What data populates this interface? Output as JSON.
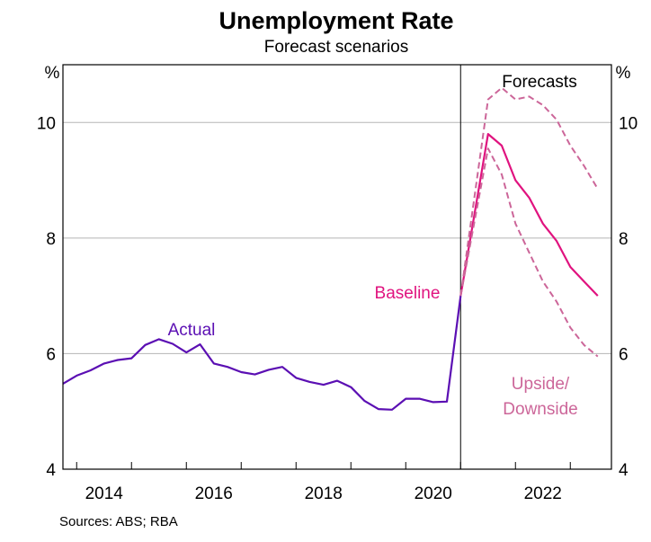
{
  "chart_data": {
    "type": "line",
    "title": "Unemployment Rate",
    "subtitle": "Forecast scenarios",
    "ylabel_left": "%",
    "ylabel_right": "%",
    "ylim": [
      4,
      11.0
    ],
    "yticks": [
      4,
      6,
      8,
      10
    ],
    "xlim": [
      2012.75,
      2022.75
    ],
    "xticks": [
      2014,
      2016,
      2018,
      2020,
      2022
    ],
    "forecast_start": 2020.0,
    "forecast_label": "Forecasts",
    "grid": true,
    "source": "Sources: ABS; RBA",
    "colors": {
      "actual": "#5b0fb3",
      "baseline": "#e0137f",
      "scenario": "#cc6699",
      "grid": "#b5b5b5",
      "axis": "#000000"
    },
    "annotations": {
      "actual": "Actual",
      "baseline": "Baseline",
      "scenario_line1": "Upside/",
      "scenario_line2": "Downside"
    },
    "series": [
      {
        "name": "Actual",
        "style": "solid",
        "x": [
          2012.75,
          2013.0,
          2013.25,
          2013.5,
          2013.75,
          2014.0,
          2014.25,
          2014.5,
          2014.75,
          2015.0,
          2015.25,
          2015.5,
          2015.75,
          2016.0,
          2016.25,
          2016.5,
          2016.75,
          2017.0,
          2017.25,
          2017.5,
          2017.75,
          2018.0,
          2018.25,
          2018.5,
          2018.75,
          2019.0,
          2019.25,
          2019.5,
          2019.75,
          2020.0
        ],
        "y": [
          5.48,
          5.62,
          5.71,
          5.83,
          5.89,
          5.92,
          6.15,
          6.25,
          6.17,
          6.02,
          6.16,
          5.83,
          5.77,
          5.68,
          5.64,
          5.72,
          5.77,
          5.58,
          5.51,
          5.46,
          5.53,
          5.42,
          5.18,
          5.04,
          5.03,
          5.22,
          5.22,
          5.16,
          5.17,
          7.0
        ]
      },
      {
        "name": "Baseline",
        "style": "solid",
        "x": [
          2020.0,
          2020.5,
          2020.75,
          2021.0,
          2021.25,
          2021.5,
          2021.75,
          2022.0,
          2022.25,
          2022.5
        ],
        "y": [
          7.0,
          9.8,
          9.6,
          9.0,
          8.7,
          8.25,
          7.95,
          7.5,
          7.25,
          7.0
        ]
      },
      {
        "name": "Upside",
        "style": "dashed",
        "x": [
          2020.0,
          2020.5,
          2020.75,
          2021.0,
          2021.25,
          2021.5,
          2021.75,
          2022.0,
          2022.25,
          2022.5
        ],
        "y": [
          7.0,
          10.4,
          10.6,
          10.4,
          10.45,
          10.3,
          10.05,
          9.6,
          9.25,
          8.85
        ]
      },
      {
        "name": "Downside",
        "style": "dashed",
        "x": [
          2020.0,
          2020.5,
          2020.75,
          2021.0,
          2021.25,
          2021.5,
          2021.75,
          2022.0,
          2022.25,
          2022.5
        ],
        "y": [
          7.0,
          9.55,
          9.1,
          8.25,
          7.75,
          7.25,
          6.9,
          6.45,
          6.15,
          5.95
        ]
      }
    ]
  }
}
